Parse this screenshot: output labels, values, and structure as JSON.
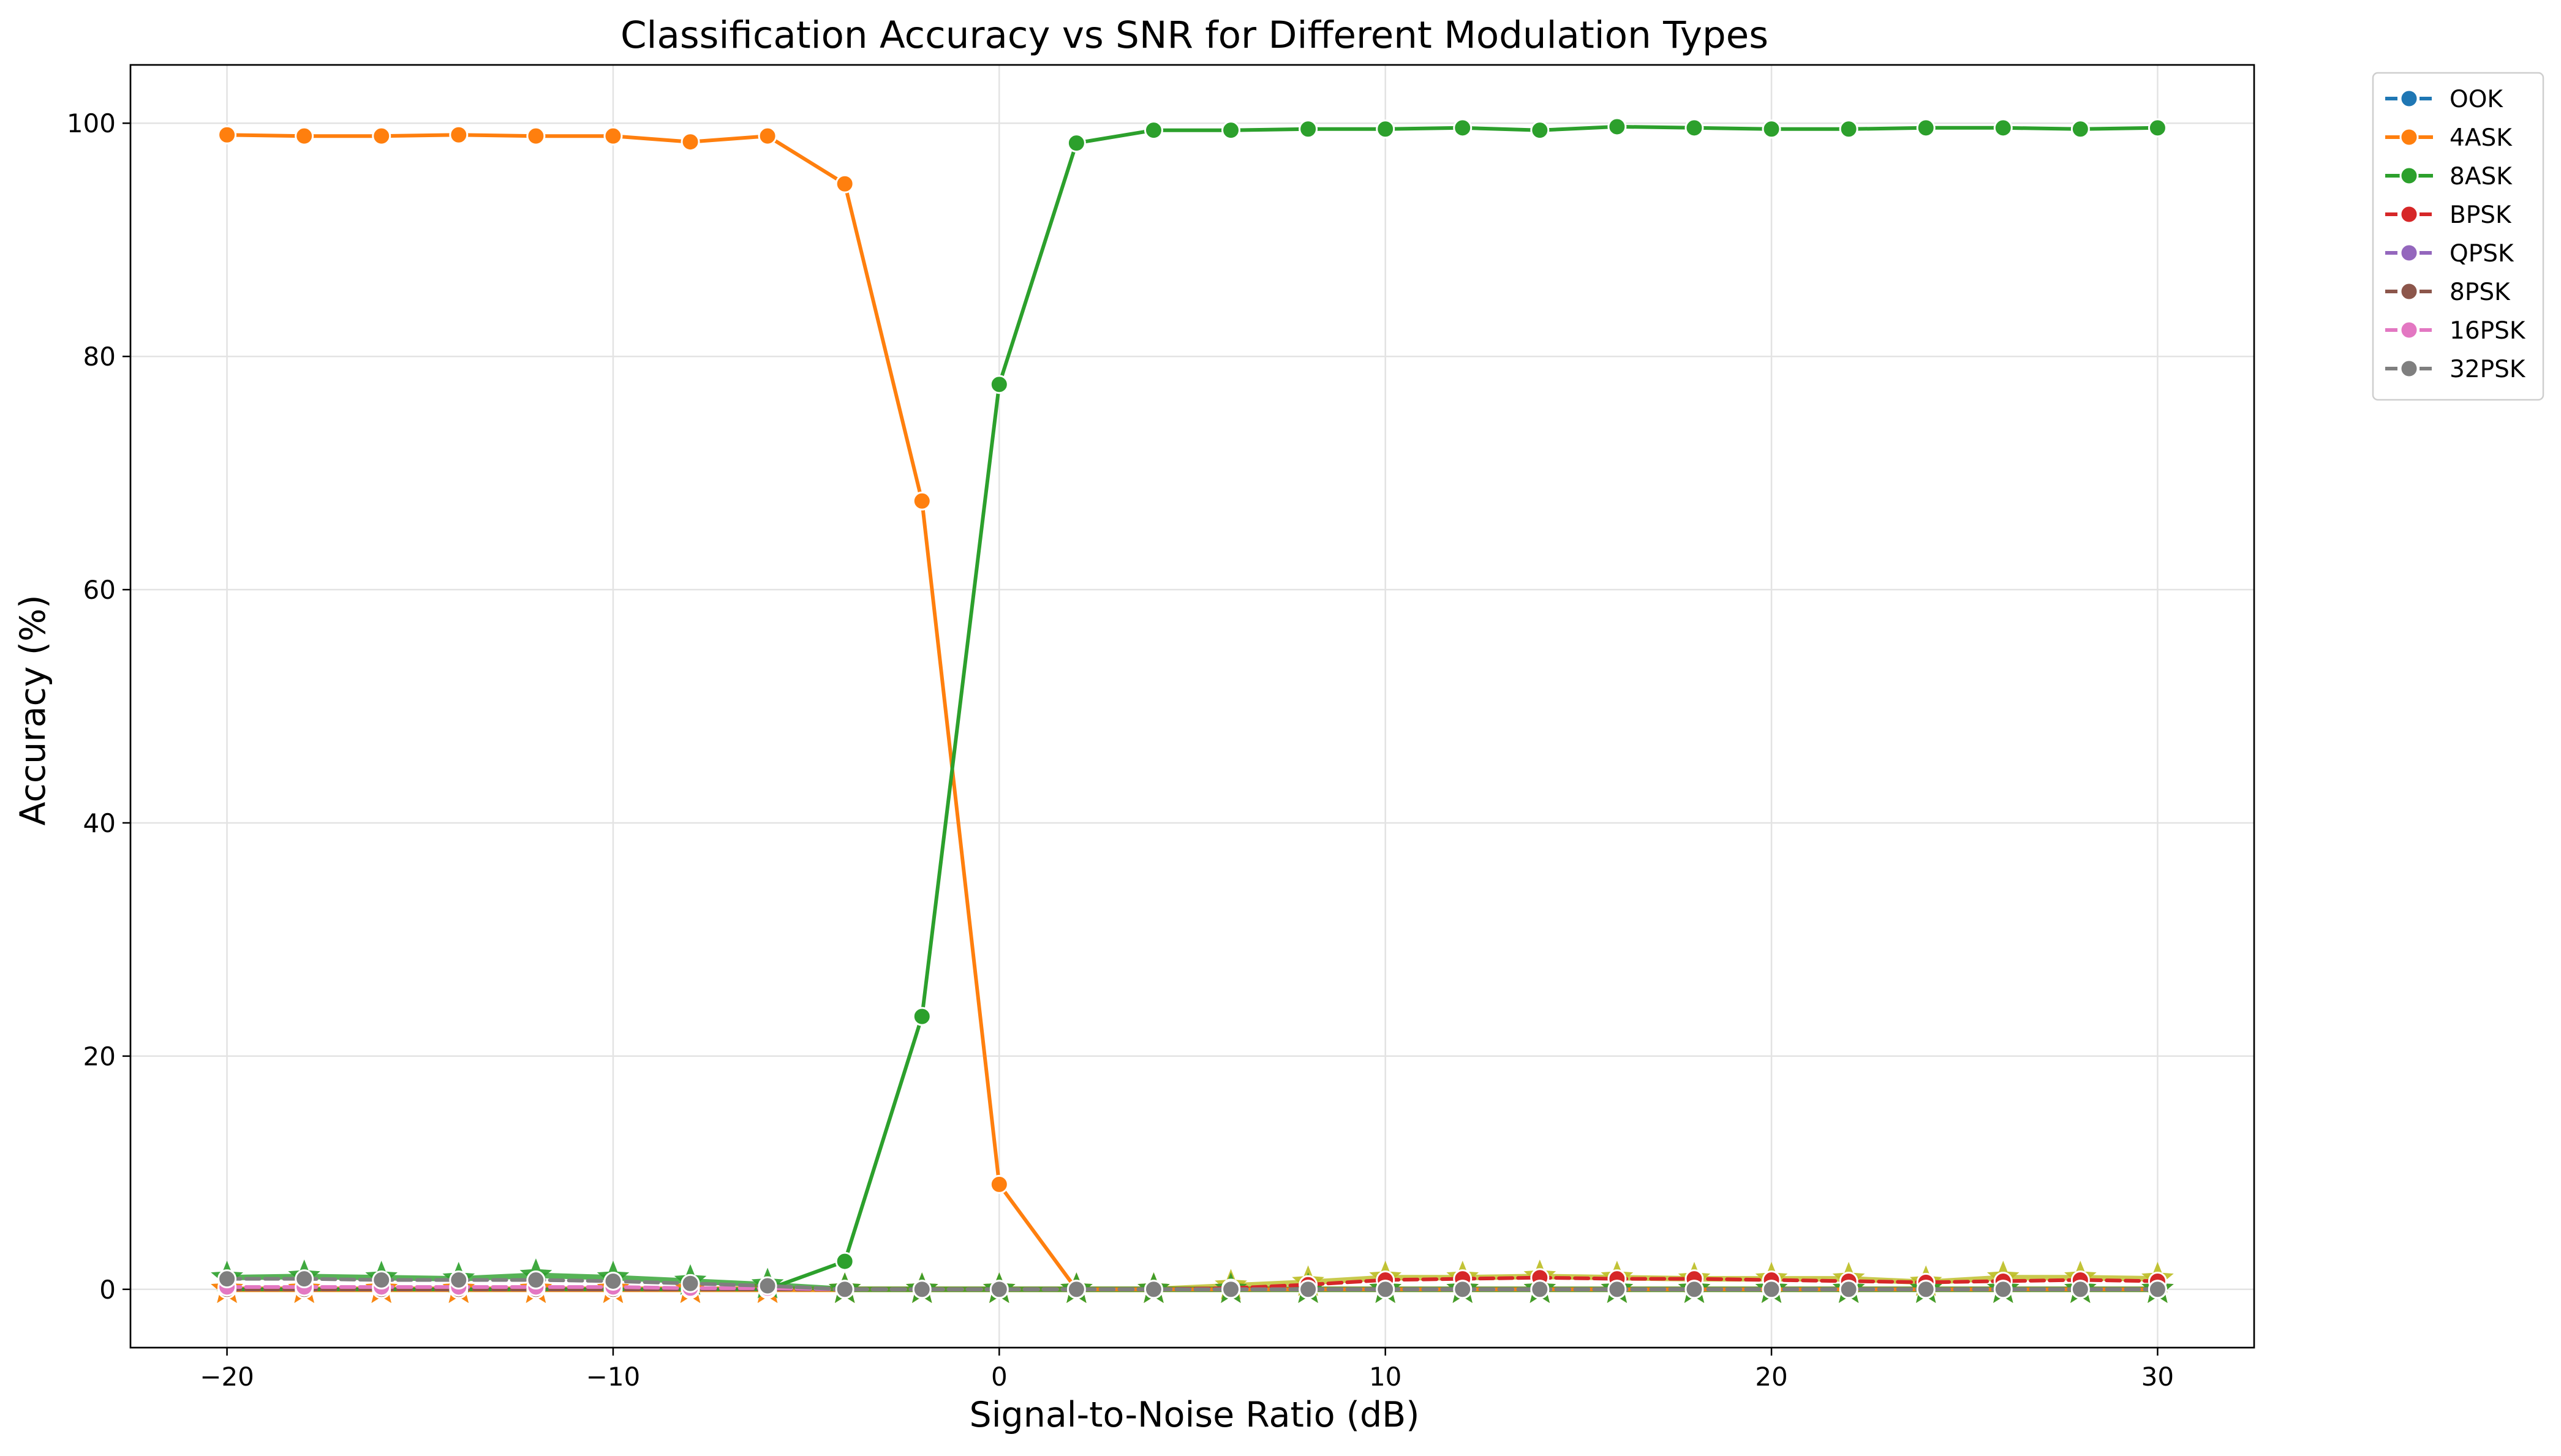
{
  "chart_data": {
    "type": "line",
    "title": "Classification Accuracy vs SNR for Different Modulation Types",
    "xlabel": "Signal-to-Noise Ratio (dB)",
    "ylabel": "Accuracy (%)",
    "xlim": [
      -22.5,
      32.5
    ],
    "ylim": [
      -5,
      105
    ],
    "x_ticks": [
      -20,
      -10,
      0,
      10,
      20,
      30
    ],
    "x_tick_labels": [
      "−20",
      "−10",
      "0",
      "10",
      "20",
      "30"
    ],
    "y_ticks": [
      0,
      20,
      40,
      60,
      80,
      100
    ],
    "y_tick_labels": [
      "0",
      "20",
      "40",
      "60",
      "80",
      "100"
    ],
    "grid": true,
    "legend_position": "outside-top-right",
    "x": [
      -20,
      -18,
      -16,
      -14,
      -12,
      -10,
      -8,
      -6,
      -4,
      -2,
      0,
      2,
      4,
      6,
      8,
      10,
      12,
      14,
      16,
      18,
      20,
      22,
      24,
      26,
      28,
      30
    ],
    "series": [
      {
        "name": "OOK",
        "color": "#1f77b4",
        "marker": "circle",
        "linestyle": "dashed",
        "in_legend": true,
        "values": [
          0,
          0,
          0,
          0,
          0,
          0,
          0,
          0,
          0,
          0,
          0,
          0,
          0,
          0,
          0,
          0,
          0,
          0,
          0,
          0,
          0,
          0,
          0,
          0,
          0,
          0
        ]
      },
      {
        "name": "4ASK",
        "color": "#ff7f0e",
        "marker": "circle",
        "linestyle": "solid",
        "in_legend": true,
        "values": [
          99.0,
          98.9,
          98.9,
          99.0,
          98.9,
          98.9,
          98.4,
          98.9,
          94.8,
          67.6,
          9.0,
          0,
          0,
          0,
          0,
          0,
          0,
          0,
          0,
          0,
          0,
          0,
          0,
          0,
          0,
          0
        ]
      },
      {
        "name": "8ASK",
        "color": "#2ca02c",
        "marker": "circle",
        "linestyle": "solid",
        "in_legend": true,
        "values": [
          0,
          0,
          0,
          0,
          0,
          0,
          0,
          0,
          2.4,
          23.4,
          77.6,
          98.3,
          99.4,
          99.4,
          99.5,
          99.5,
          99.6,
          99.4,
          99.7,
          99.6,
          99.5,
          99.5,
          99.6,
          99.6,
          99.5,
          99.6
        ]
      },
      {
        "name": "BPSK",
        "color": "#d62728",
        "marker": "circle",
        "linestyle": "dashed",
        "in_legend": true,
        "values": [
          0,
          0,
          0,
          0,
          0,
          0,
          0,
          0,
          0,
          0,
          0,
          0,
          0,
          0.1,
          0.4,
          0.8,
          0.9,
          1.0,
          0.9,
          0.9,
          0.8,
          0.7,
          0.6,
          0.7,
          0.8,
          0.7
        ]
      },
      {
        "name": "QPSK",
        "color": "#9467bd",
        "marker": "circle",
        "linestyle": "dashed",
        "in_legend": true,
        "values": [
          0,
          0,
          0,
          0,
          0,
          0,
          0,
          0,
          0,
          0,
          0,
          0,
          0,
          0,
          0,
          0,
          0,
          0,
          0,
          0,
          0,
          0,
          0,
          0,
          0,
          0
        ]
      },
      {
        "name": "8PSK",
        "color": "#8c564b",
        "marker": "circle",
        "linestyle": "dashed",
        "in_legend": true,
        "values": [
          0,
          0,
          0,
          0,
          0,
          0,
          0,
          0,
          0,
          0,
          0,
          0,
          0,
          0,
          0,
          0,
          0,
          0,
          0,
          0,
          0,
          0,
          0,
          0,
          0,
          0
        ]
      },
      {
        "name": "16PSK",
        "color": "#e377c2",
        "marker": "circle",
        "linestyle": "dashed",
        "in_legend": true,
        "values": [
          0.2,
          0.2,
          0.2,
          0.2,
          0.2,
          0.2,
          0.1,
          0.1,
          0,
          0,
          0,
          0,
          0,
          0,
          0,
          0,
          0,
          0,
          0,
          0,
          0,
          0,
          0,
          0,
          0,
          0
        ]
      },
      {
        "name": "32PSK",
        "color": "#7f7f7f",
        "marker": "circle",
        "linestyle": "dashed",
        "in_legend": true,
        "values": [
          0.9,
          0.9,
          0.8,
          0.8,
          0.8,
          0.7,
          0.5,
          0.3,
          0,
          0,
          0,
          0,
          0,
          0,
          0,
          0,
          0,
          0,
          0,
          0,
          0,
          0,
          0,
          0,
          0,
          0
        ]
      },
      {
        "name": "",
        "color": "#bcbd22",
        "marker": "star",
        "linestyle": "solid",
        "in_legend": false,
        "values": [
          0,
          0,
          0,
          0,
          0,
          0,
          0,
          0,
          0,
          0,
          0,
          0,
          0,
          0.3,
          0.6,
          1.0,
          1.0,
          1.1,
          1.0,
          0.9,
          0.9,
          0.9,
          0.6,
          1.0,
          1.0,
          0.9
        ]
      },
      {
        "name": "",
        "color": "#ff7f0e",
        "marker": "star",
        "linestyle": "solid",
        "in_legend": false,
        "values": [
          0,
          0,
          0,
          0,
          0,
          0,
          0,
          0,
          0,
          0,
          0,
          0,
          0,
          0,
          0,
          0,
          0,
          0,
          0,
          0,
          0,
          0,
          0,
          0,
          0,
          0
        ]
      },
      {
        "name": "",
        "color": "#2ca02c",
        "marker": "star",
        "linestyle": "solid",
        "in_legend": false,
        "values": [
          1.0,
          1.1,
          1.0,
          0.9,
          1.2,
          1.0,
          0.7,
          0.4,
          0,
          0,
          0,
          0,
          0,
          0,
          0,
          0,
          0,
          0,
          0,
          0,
          0,
          0,
          0,
          0,
          0,
          0
        ]
      }
    ]
  }
}
